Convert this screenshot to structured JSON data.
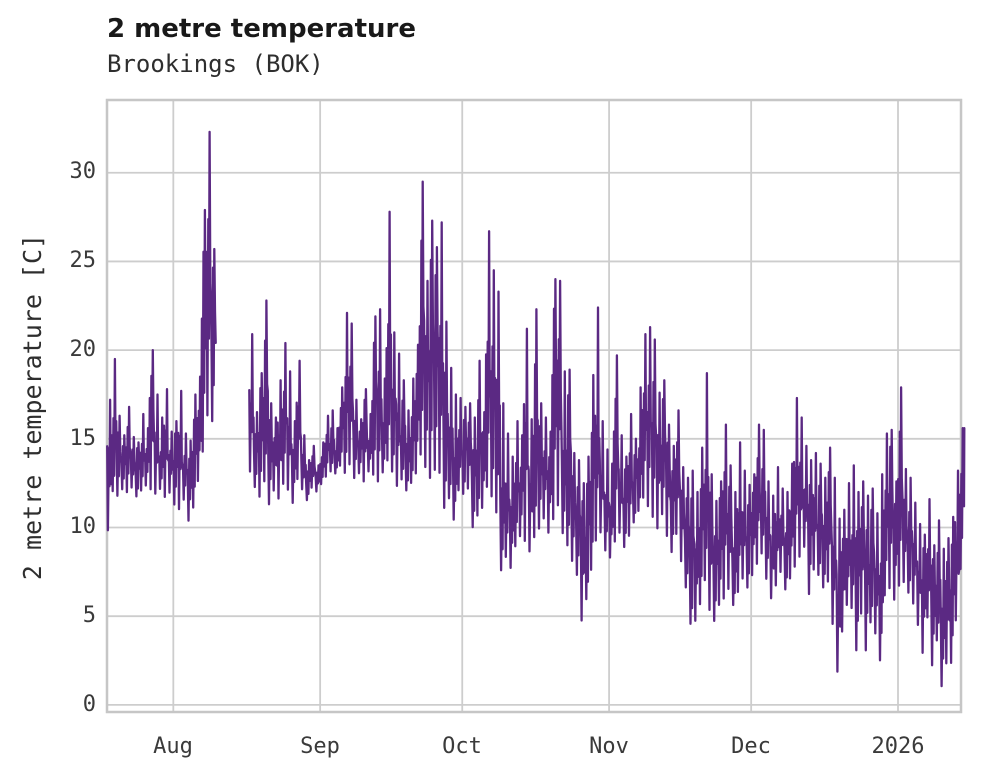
{
  "header": {
    "title": "2 metre temperature",
    "subtitle": "Brookings (BOK)"
  },
  "chart_data": {
    "type": "line",
    "title": "2 metre temperature",
    "subtitle": "Brookings (BOK)",
    "xlabel": "",
    "ylabel": "2 metre temperature [C]",
    "series_name": "2 metre temperature",
    "line_color": "#5b2983",
    "grid_color": "#cdcdcd",
    "border_color": "#c6c6c6",
    "background_color": "#ffffff",
    "legend": "none",
    "grid": "on",
    "ylim": [
      -0.4,
      34.1
    ],
    "yticks": [
      0,
      5,
      10,
      15,
      20,
      25,
      30
    ],
    "x_tick_labels": [
      "Aug",
      "Sep",
      "Oct",
      "Nov",
      "Dec",
      "2026"
    ],
    "x_tick_days": [
      14,
      45,
      75,
      106,
      136,
      167
    ],
    "x_total_days": 180.3,
    "x_unit": "days since series start (mid-July) - hourly temperature trace",
    "data_gap_days": [
      23,
      24,
      25,
      26,
      27,
      28,
      29
    ],
    "peak_value": 32.3,
    "min_value": 0.9,
    "daily_min_max": [
      [
        9.7,
        17.2
      ],
      [
        11.9,
        19.5
      ],
      [
        11.7,
        16.3
      ],
      [
        12.1,
        15.2
      ],
      [
        11.9,
        16.8
      ],
      [
        12.2,
        15.1
      ],
      [
        11.7,
        14.8
      ],
      [
        12.0,
        16.4
      ],
      [
        12.3,
        15.6
      ],
      [
        12.0,
        20.0
      ],
      [
        11.8,
        17.5
      ],
      [
        12.1,
        16.2
      ],
      [
        11.6,
        17.8
      ],
      [
        11.9,
        15.4
      ],
      [
        11.2,
        16.0
      ],
      [
        10.9,
        17.7
      ],
      [
        11.5,
        15.3
      ],
      [
        10.3,
        14.9
      ],
      [
        11.0,
        17.5
      ],
      [
        12.5,
        18.5
      ],
      [
        14.0,
        27.9
      ],
      [
        16.0,
        32.3
      ],
      [
        15.8,
        25.7
      ],
      null,
      null,
      null,
      null,
      null,
      null,
      null,
      [
        13.0,
        20.9
      ],
      [
        12.2,
        16.5
      ],
      [
        11.6,
        18.7
      ],
      [
        12.4,
        22.8
      ],
      [
        11.2,
        17.0
      ],
      [
        12.0,
        16.2
      ],
      [
        11.5,
        18.3
      ],
      [
        12.3,
        20.4
      ],
      [
        12.0,
        18.8
      ],
      [
        11.3,
        16.0
      ],
      [
        12.6,
        19.4
      ],
      [
        12.1,
        15.2
      ],
      [
        11.5,
        13.8
      ],
      [
        12.2,
        14.6
      ],
      [
        12.0,
        13.5
      ],
      [
        12.4,
        14.8
      ],
      [
        12.8,
        16.3
      ],
      [
        13.1,
        16.6
      ],
      [
        13.0,
        15.6
      ],
      [
        13.4,
        17.9
      ],
      [
        12.9,
        22.1
      ],
      [
        13.4,
        21.5
      ],
      [
        12.7,
        17.2
      ],
      [
        13.0,
        16.1
      ],
      [
        12.5,
        17.8
      ],
      [
        13.1,
        16.4
      ],
      [
        12.8,
        21.9
      ],
      [
        12.4,
        22.3
      ],
      [
        13.0,
        18.4
      ],
      [
        13.5,
        27.8
      ],
      [
        13.0,
        21.0
      ],
      [
        12.2,
        19.8
      ],
      [
        12.6,
        18.3
      ],
      [
        12.0,
        16.6
      ],
      [
        12.4,
        18.4
      ],
      [
        12.9,
        20.3
      ],
      [
        13.8,
        29.5
      ],
      [
        13.2,
        23.9
      ],
      [
        12.5,
        27.3
      ],
      [
        13.0,
        25.8
      ],
      [
        12.8,
        27.2
      ],
      [
        10.9,
        21.6
      ],
      [
        11.5,
        19.0
      ],
      [
        10.3,
        17.5
      ],
      [
        12.0,
        17.3
      ],
      [
        11.8,
        16.8
      ],
      [
        12.1,
        17.0
      ],
      [
        9.9,
        16.2
      ],
      [
        10.5,
        19.4
      ],
      [
        11.0,
        16.5
      ],
      [
        12.0,
        26.7
      ],
      [
        11.5,
        24.5
      ],
      [
        10.6,
        23.3
      ],
      [
        7.4,
        17.0
      ],
      [
        8.2,
        15.3
      ],
      [
        7.6,
        14.0
      ],
      [
        8.8,
        16.0
      ],
      [
        9.4,
        15.2
      ],
      [
        9.0,
        21.2
      ],
      [
        8.5,
        16.1
      ],
      [
        9.2,
        22.3
      ],
      [
        9.8,
        17.0
      ],
      [
        10.4,
        16.2
      ],
      [
        9.6,
        15.4
      ],
      [
        10.2,
        24.0
      ],
      [
        11.0,
        23.9
      ],
      [
        9.5,
        18.8
      ],
      [
        8.8,
        18.9
      ],
      [
        8.0,
        14.2
      ],
      [
        7.2,
        13.8
      ],
      [
        4.6,
        12.5
      ],
      [
        5.8,
        14.0
      ],
      [
        7.4,
        18.6
      ],
      [
        9.0,
        22.4
      ],
      [
        9.6,
        16.0
      ],
      [
        8.6,
        14.4
      ],
      [
        8.2,
        13.6
      ],
      [
        9.0,
        19.7
      ],
      [
        9.6,
        15.2
      ],
      [
        8.8,
        14.0
      ],
      [
        9.4,
        16.4
      ],
      [
        10.2,
        15.0
      ],
      [
        10.8,
        17.9
      ],
      [
        11.5,
        20.9
      ],
      [
        11.0,
        21.3
      ],
      [
        10.4,
        20.6
      ],
      [
        9.8,
        17.6
      ],
      [
        10.6,
        18.3
      ],
      [
        9.4,
        15.8
      ],
      [
        8.5,
        14.6
      ],
      [
        9.5,
        16.6
      ],
      [
        8.0,
        13.4
      ],
      [
        6.5,
        12.8
      ],
      [
        4.4,
        13.2
      ],
      [
        4.6,
        12.0
      ],
      [
        5.5,
        14.5
      ],
      [
        6.8,
        18.7
      ],
      [
        5.2,
        13.0
      ],
      [
        4.6,
        11.5
      ],
      [
        5.5,
        12.6
      ],
      [
        5.8,
        15.8
      ],
      [
        6.4,
        13.5
      ],
      [
        5.5,
        12.0
      ],
      [
        6.2,
        14.8
      ],
      [
        7.0,
        13.2
      ],
      [
        6.5,
        12.4
      ],
      [
        7.2,
        13.0
      ],
      [
        7.8,
        15.8
      ],
      [
        8.4,
        15.5
      ],
      [
        7.0,
        12.6
      ],
      [
        5.9,
        11.8
      ],
      [
        6.6,
        13.4
      ],
      [
        7.4,
        12.2
      ],
      [
        6.4,
        12.0
      ],
      [
        7.0,
        13.6
      ],
      [
        7.6,
        17.3
      ],
      [
        8.2,
        16.2
      ],
      [
        8.8,
        14.6
      ],
      [
        6.1,
        13.8
      ],
      [
        7.5,
        14.2
      ],
      [
        7.2,
        13.6
      ],
      [
        6.5,
        12.8
      ],
      [
        6.8,
        14.5
      ],
      [
        4.4,
        12.8
      ],
      [
        1.7,
        10.5
      ],
      [
        4.0,
        11.0
      ],
      [
        5.5,
        12.5
      ],
      [
        5.3,
        13.5
      ],
      [
        2.9,
        12.0
      ],
      [
        5.0,
        12.6
      ],
      [
        2.9,
        11.8
      ],
      [
        4.5,
        12.2
      ],
      [
        3.9,
        10.8
      ],
      [
        2.3,
        13.0
      ],
      [
        6.0,
        15.3
      ],
      [
        6.4,
        15.5
      ],
      [
        5.8,
        12.6
      ],
      [
        6.5,
        17.9
      ],
      [
        6.8,
        13.3
      ],
      [
        6.2,
        12.8
      ],
      [
        5.6,
        11.4
      ],
      [
        4.4,
        10.2
      ],
      [
        2.8,
        9.6
      ],
      [
        4.8,
        11.6
      ],
      [
        2.1,
        9.0
      ],
      [
        3.5,
        10.4
      ],
      [
        0.9,
        8.8
      ],
      [
        2.2,
        9.4
      ],
      [
        2.2,
        10.6
      ],
      [
        4.6,
        13.2
      ],
      [
        7.5,
        15.6
      ]
    ]
  }
}
